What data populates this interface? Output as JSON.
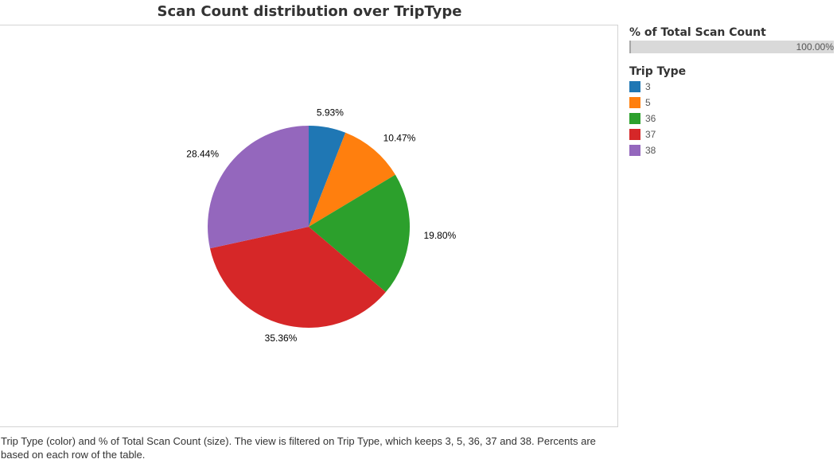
{
  "chart_data": {
    "type": "pie",
    "title": "Scan Count distribution over TripType",
    "categories": [
      "3",
      "5",
      "36",
      "37",
      "38"
    ],
    "values": [
      5.93,
      10.47,
      19.8,
      35.36,
      28.44
    ],
    "value_labels": [
      "5.93%",
      "10.47%",
      "19.80%",
      "35.36%",
      "28.44%"
    ],
    "colors": [
      "#1f77b4",
      "#ff7f0e",
      "#2ca02c",
      "#d62728",
      "#9467bd"
    ],
    "size_legend": {
      "title": "% of Total Scan Count",
      "value": "100.00%"
    },
    "color_legend": {
      "title": "Trip Type",
      "items": [
        "3",
        "5",
        "36",
        "37",
        "38"
      ]
    }
  },
  "caption": "Trip Type (color) and % of Total Scan Count (size).  The view is filtered on Trip Type, which keeps 3, 5, 36, 37 and 38. Percents are based on each row of the table."
}
